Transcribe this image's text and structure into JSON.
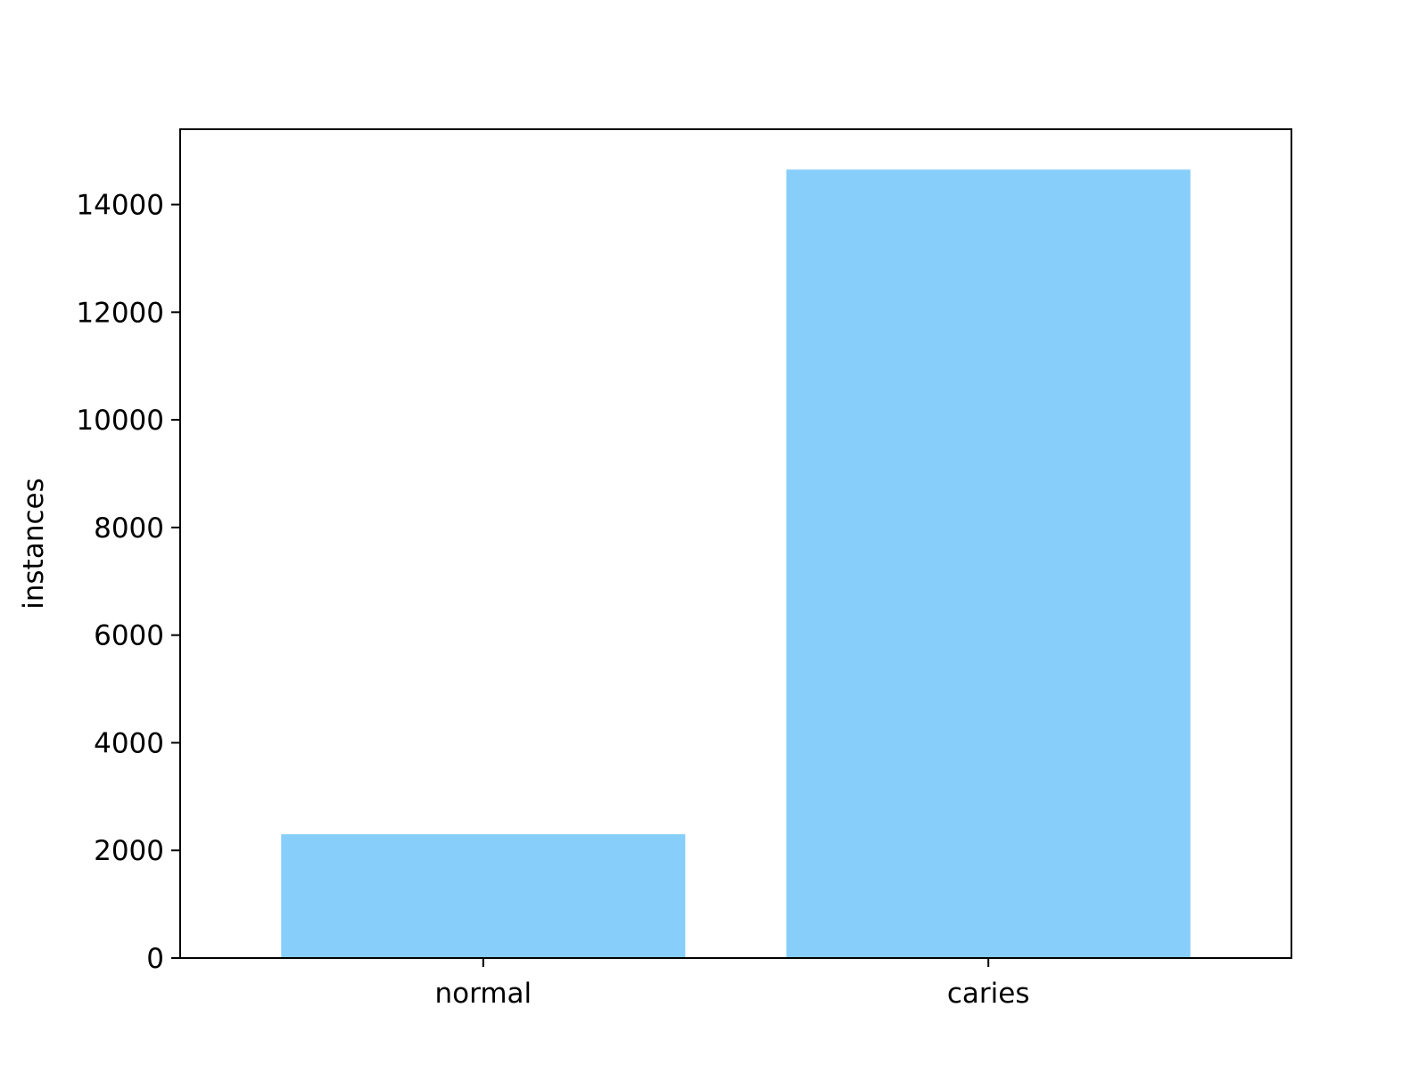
{
  "chart_data": {
    "type": "bar",
    "categories": [
      "normal",
      "caries"
    ],
    "values": [
      2300,
      14650
    ],
    "title": "",
    "xlabel": "",
    "ylabel": "instances",
    "ylim": [
      0,
      15400
    ],
    "yticks": [
      0,
      2000,
      4000,
      6000,
      8000,
      10000,
      12000,
      14000
    ],
    "ytick_labels": [
      "0",
      "2000",
      "4000",
      "6000",
      "8000",
      "10000",
      "12000",
      "14000"
    ],
    "grid": false,
    "bar_color": "#87CEFA",
    "axis_color": "#000000",
    "background_color": "#ffffff"
  }
}
